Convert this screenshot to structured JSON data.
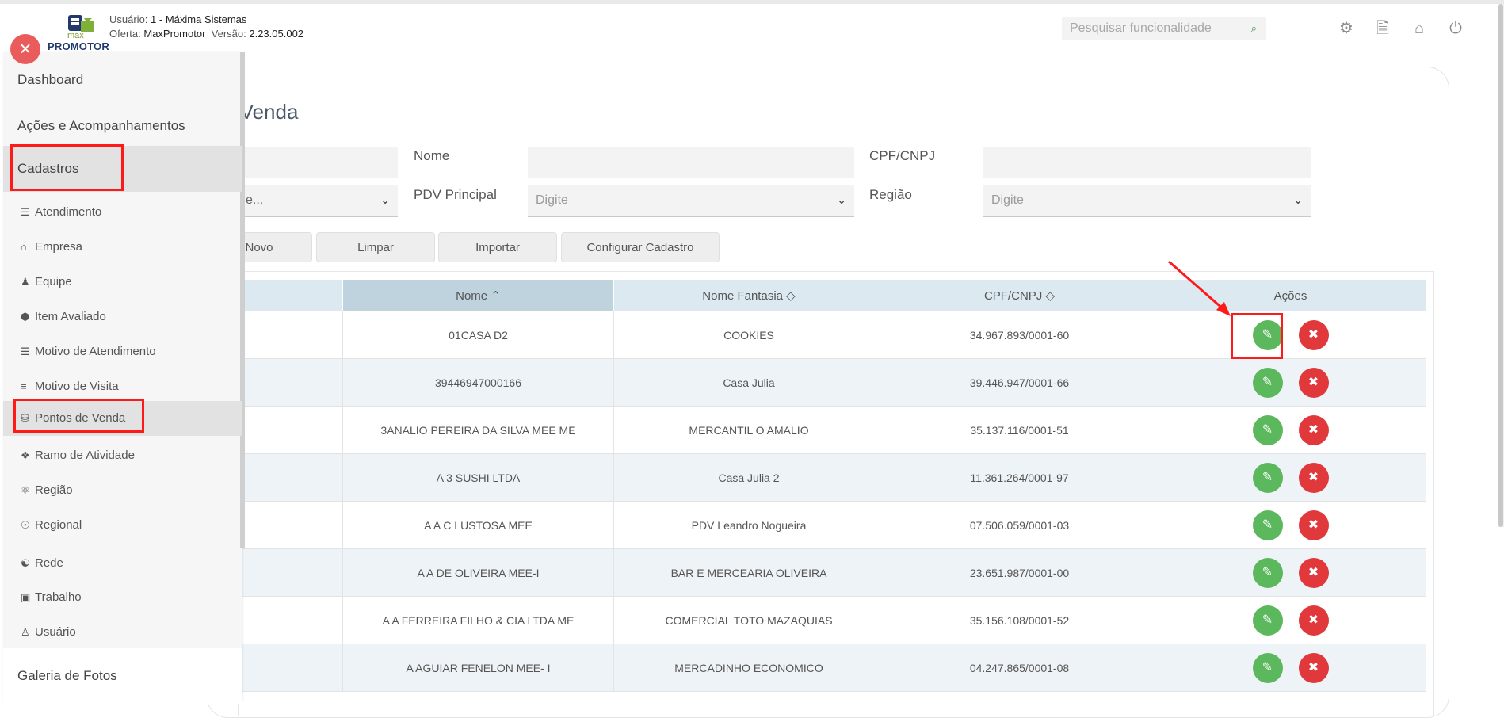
{
  "header": {
    "logo_top": "max",
    "logo_bottom": "PROMOTOR",
    "user_label": "Usuário:",
    "user_value": "1 - Máxima Sistemas",
    "offer_label": "Oferta:",
    "offer_value": "MaxPromotor",
    "version_label": "Versão:",
    "version_value": "2.23.05.002",
    "search_placeholder": "Pesquisar funcionalidade",
    "icons": [
      "gears-icon",
      "document-icon",
      "home-icon",
      "power-icon"
    ]
  },
  "page": {
    "title": "e Venda",
    "filters": {
      "nome_label": "Nome",
      "cpf_label": "CPF/CNPJ",
      "pdv_label": "PDV Principal",
      "regiao_label": "Região",
      "left_select_value": "e...",
      "pdv_placeholder": "Digite",
      "regiao_placeholder": "Digite"
    },
    "buttons": {
      "novo": "Novo",
      "limpar": "Limpar",
      "importar": "Importar",
      "configurar": "Configurar Cadastro"
    }
  },
  "table": {
    "headers": {
      "nome": "Nome",
      "fantasia": "Nome Fantasia",
      "cpf": "CPF/CNPJ",
      "acoes": "Ações"
    },
    "rows": [
      {
        "nome": "01CASA D2",
        "fantasia": "COOKIES",
        "cpf": "34.967.893/0001-60"
      },
      {
        "nome": "39446947000166",
        "fantasia": "Casa Julia",
        "cpf": "39.446.947/0001-66"
      },
      {
        "nome": "3ANALIO PEREIRA DA SILVA MEE ME",
        "fantasia": "MERCANTIL O AMALIO",
        "cpf": "35.137.116/0001-51"
      },
      {
        "nome": "A 3 SUSHI LTDA",
        "fantasia": "Casa Julia 2",
        "cpf": "11.361.264/0001-97"
      },
      {
        "nome": "A A C LUSTOSA MEE",
        "fantasia": "PDV Leandro Nogueira",
        "cpf": "07.506.059/0001-03"
      },
      {
        "nome": "A A DE OLIVEIRA MEE-I",
        "fantasia": "BAR E MERCEARIA OLIVEIRA",
        "cpf": "23.651.987/0001-00"
      },
      {
        "nome": "A A FERREIRA FILHO & CIA LTDA ME",
        "fantasia": "COMERCIAL TOTO MAZAQUIAS",
        "cpf": "35.156.108/0001-52"
      },
      {
        "nome": "A AGUIAR FENELON MEE- I",
        "fantasia": "MERCADINHO ECONOMICO",
        "cpf": "04.247.865/0001-08"
      }
    ]
  },
  "sidebar": {
    "close_icon": "close-icon",
    "top_items": [
      "Dashboard",
      "Ações e Acompanhamentos",
      "Cadastros"
    ],
    "sub_items": [
      {
        "label": "Atendimento",
        "icon": "list-icon"
      },
      {
        "label": "Empresa",
        "icon": "home-icon"
      },
      {
        "label": "Equipe",
        "icon": "users-icon"
      },
      {
        "label": "Item Avaliado",
        "icon": "cube-icon"
      },
      {
        "label": "Motivo de Atendimento",
        "icon": "list-icon"
      },
      {
        "label": "Motivo de Visita",
        "icon": "bars-icon"
      },
      {
        "label": "Pontos de Venda",
        "icon": "database-icon"
      },
      {
        "label": "Ramo de Atividade",
        "icon": "expand-icon"
      },
      {
        "label": "Região",
        "icon": "globe-icon"
      },
      {
        "label": "Regional",
        "icon": "compass-icon"
      },
      {
        "label": "Rede",
        "icon": "network-icon"
      },
      {
        "label": "Trabalho",
        "icon": "briefcase-icon"
      },
      {
        "label": "Usuário",
        "icon": "user-icon"
      }
    ],
    "bottom_item": "Galeria de Fotos"
  },
  "colors": {
    "edit": "#5cb85c",
    "delete": "#e0383b",
    "highlight": "#ff1a1a"
  }
}
